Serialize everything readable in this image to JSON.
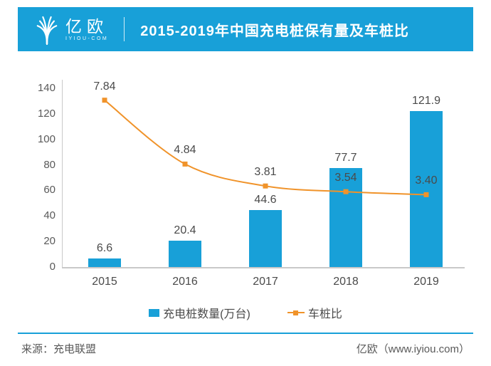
{
  "header": {
    "logo_text": "亿欧",
    "logo_subtext": "IYIOU-COM",
    "title": "2015-2019年中国充电桩保有量及车桩比"
  },
  "chart_data": {
    "type": "bar",
    "title": "2015-2019年中国充电桩保有量及车桩比",
    "categories": [
      "2015",
      "2016",
      "2017",
      "2018",
      "2019"
    ],
    "series": [
      {
        "name": "充电桩数量(万台)",
        "type": "bar",
        "axis": "left",
        "values": [
          6.6,
          20.4,
          44.6,
          77.7,
          121.9
        ]
      },
      {
        "name": "车桩比",
        "type": "line",
        "axis": "right",
        "values": [
          7.84,
          4.84,
          3.81,
          3.54,
          3.4
        ]
      }
    ],
    "xlabel": "",
    "ylabel": "",
    "ylim": [
      0,
      140
    ],
    "y2lim": [
      0,
      8.4
    ],
    "yticks": [
      0,
      20,
      40,
      60,
      80,
      100,
      120,
      140
    ],
    "grid": false,
    "legend_position": "bottom"
  },
  "legend": {
    "bar_label": "充电桩数量(万台)",
    "line_label": "车桩比"
  },
  "footer": {
    "source": "来源：充电联盟",
    "brand": "亿欧（www.iyiou.com）"
  },
  "colors": {
    "brand_blue": "#18A0D8",
    "bar_blue": "#18A0D8",
    "line_orange": "#F0932A",
    "axis_gray": "#C9C9C9",
    "label_dark": "#4A4A4A"
  }
}
